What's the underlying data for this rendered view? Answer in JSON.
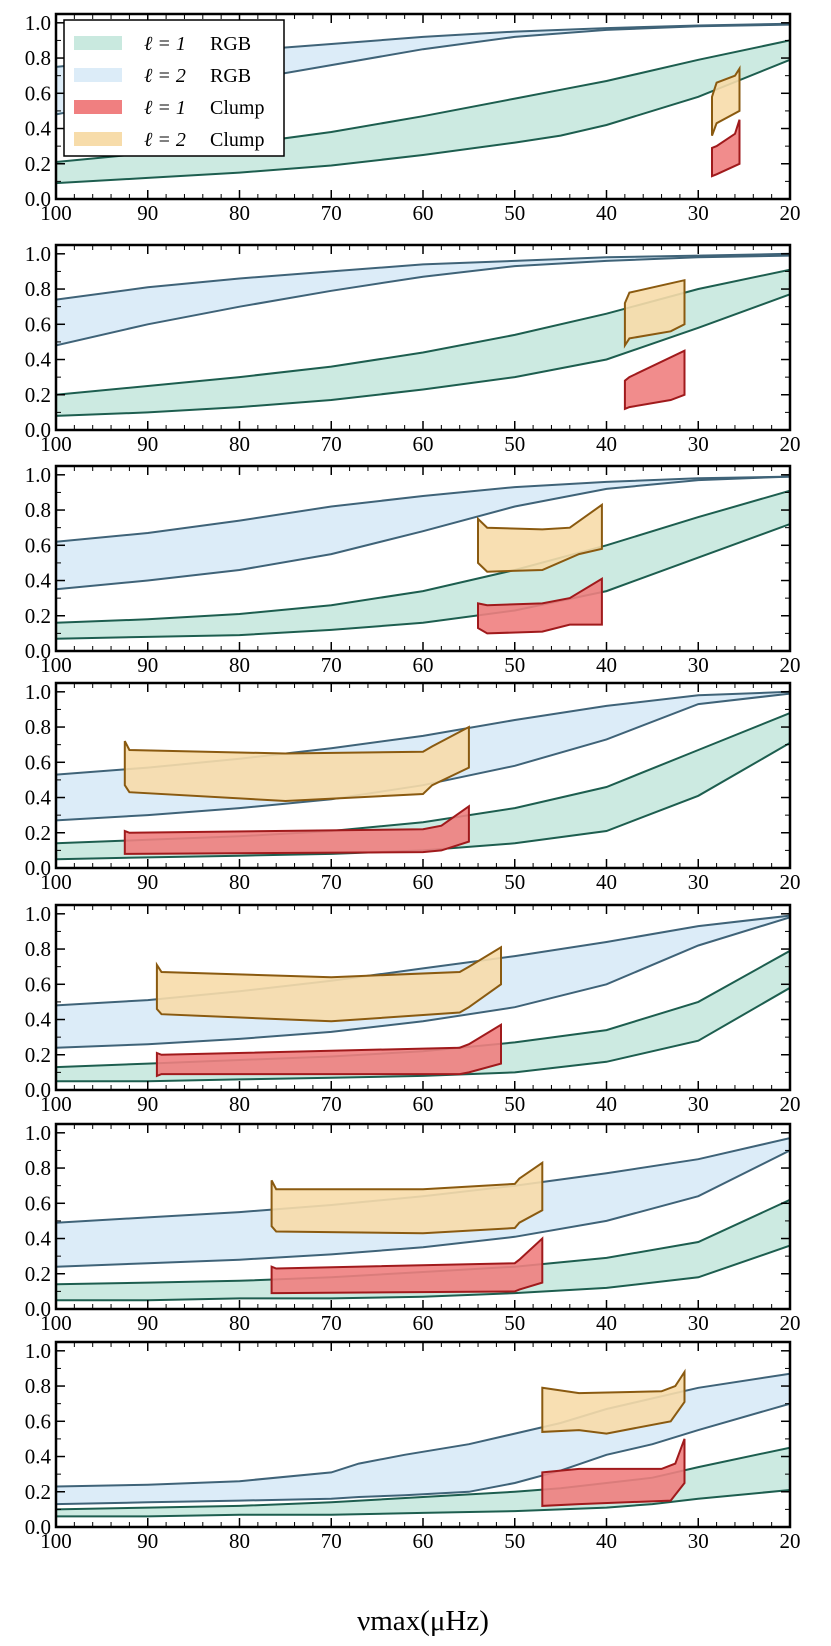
{
  "chart_data": {
    "type": "area",
    "description_free": true,
    "xlabel": "νmax(μHz)",
    "xlim": [
      100,
      20
    ],
    "ylim": [
      0,
      1.05
    ],
    "xticks": [
      "100",
      "90",
      "80",
      "70",
      "60",
      "50",
      "40",
      "30",
      "20"
    ],
    "yticks": [
      "0.0",
      "0.2",
      "0.4",
      "0.6",
      "0.8",
      "1.0"
    ],
    "colors": {
      "l1_rgb_fill": "#c9e9df",
      "l1_rgb_edge": "#1d5e4f",
      "l2_rgb_fill": "#dcecf8",
      "l2_rgb_edge": "#3f6378",
      "l1_clump_fill": "#f07f80",
      "l1_clump_edge": "#a01a1c",
      "l2_clump_fill": "#f7dcaa",
      "l2_clump_edge": "#8a5a10"
    },
    "legend": [
      {
        "symbol": "ℓ = 1",
        "label": "RGB",
        "key": "l1_rgb"
      },
      {
        "symbol": "ℓ = 2",
        "label": "RGB",
        "key": "l2_rgb"
      },
      {
        "symbol": "ℓ = 1",
        "label": "Clump",
        "key": "l1_clump"
      },
      {
        "symbol": "ℓ = 2",
        "label": "Clump",
        "key": "l2_clump"
      }
    ],
    "panels": [
      {
        "l2_rgb": {
          "x": [
            100,
            90,
            80,
            70,
            60,
            50,
            45,
            40,
            30,
            20
          ],
          "upper": [
            0.75,
            0.8,
            0.84,
            0.88,
            0.92,
            0.95,
            0.96,
            0.97,
            0.985,
            0.995
          ],
          "lower": [
            0.48,
            0.58,
            0.67,
            0.76,
            0.85,
            0.92,
            0.94,
            0.96,
            0.98,
            0.99
          ]
        },
        "l1_rgb": {
          "x": [
            100,
            90,
            80,
            70,
            60,
            50,
            45,
            40,
            30,
            20
          ],
          "upper": [
            0.21,
            0.26,
            0.31,
            0.38,
            0.47,
            0.57,
            0.62,
            0.67,
            0.79,
            0.9
          ],
          "lower": [
            0.09,
            0.12,
            0.15,
            0.19,
            0.25,
            0.32,
            0.36,
            0.42,
            0.58,
            0.79
          ]
        },
        "l2_clump": {
          "x": [
            28.5,
            28,
            26,
            25.5,
            25.5,
            28,
            28.5
          ],
          "y": [
            0.58,
            0.66,
            0.7,
            0.74,
            0.5,
            0.43,
            0.36
          ]
        },
        "l1_clump": {
          "x": [
            28.5,
            28,
            26,
            25.5,
            25.5,
            28,
            28.5
          ],
          "y": [
            0.29,
            0.3,
            0.37,
            0.45,
            0.2,
            0.14,
            0.13
          ]
        }
      },
      {
        "l2_rgb": {
          "x": [
            100,
            90,
            80,
            70,
            60,
            50,
            40,
            30,
            20
          ],
          "upper": [
            0.74,
            0.81,
            0.86,
            0.9,
            0.94,
            0.96,
            0.98,
            0.99,
            1.0
          ],
          "lower": [
            0.48,
            0.6,
            0.7,
            0.79,
            0.87,
            0.93,
            0.96,
            0.98,
            0.99
          ]
        },
        "l1_rgb": {
          "x": [
            100,
            90,
            80,
            70,
            60,
            50,
            40,
            30,
            20
          ],
          "upper": [
            0.2,
            0.25,
            0.3,
            0.36,
            0.44,
            0.54,
            0.66,
            0.8,
            0.91
          ],
          "lower": [
            0.08,
            0.1,
            0.13,
            0.17,
            0.23,
            0.3,
            0.4,
            0.58,
            0.77
          ]
        },
        "l2_clump": {
          "x": [
            38,
            37.5,
            31.5,
            31.5,
            33,
            37.5,
            38
          ],
          "y": [
            0.72,
            0.78,
            0.85,
            0.6,
            0.56,
            0.52,
            0.48
          ]
        },
        "l1_clump": {
          "x": [
            38,
            37.5,
            31.5,
            31.5,
            33,
            37.5,
            38
          ],
          "y": [
            0.28,
            0.3,
            0.45,
            0.2,
            0.17,
            0.13,
            0.12
          ]
        }
      },
      {
        "l2_rgb": {
          "x": [
            100,
            90,
            80,
            70,
            60,
            50,
            40,
            30,
            20
          ],
          "upper": [
            0.62,
            0.67,
            0.74,
            0.82,
            0.88,
            0.93,
            0.96,
            0.98,
            0.99
          ],
          "lower": [
            0.35,
            0.4,
            0.46,
            0.55,
            0.68,
            0.82,
            0.92,
            0.97,
            0.99
          ]
        },
        "l1_rgb": {
          "x": [
            100,
            90,
            80,
            70,
            60,
            50,
            40,
            30,
            20
          ],
          "upper": [
            0.16,
            0.18,
            0.21,
            0.26,
            0.34,
            0.46,
            0.6,
            0.76,
            0.91
          ],
          "lower": [
            0.07,
            0.08,
            0.09,
            0.12,
            0.16,
            0.23,
            0.34,
            0.53,
            0.72
          ]
        },
        "l2_clump": {
          "x": [
            54,
            53,
            47,
            44,
            40.5,
            40.5,
            43,
            47,
            53,
            54
          ],
          "y": [
            0.75,
            0.7,
            0.69,
            0.7,
            0.83,
            0.58,
            0.55,
            0.46,
            0.45,
            0.5
          ]
        },
        "l1_clump": {
          "x": [
            54,
            53,
            47,
            44,
            40.5,
            40.5,
            44,
            47,
            53,
            54
          ],
          "y": [
            0.27,
            0.26,
            0.27,
            0.3,
            0.41,
            0.15,
            0.15,
            0.11,
            0.1,
            0.13
          ]
        }
      },
      {
        "l2_rgb": {
          "x": [
            100,
            90,
            80,
            70,
            60,
            50,
            40,
            30,
            20
          ],
          "upper": [
            0.53,
            0.57,
            0.62,
            0.68,
            0.75,
            0.84,
            0.92,
            0.98,
            1.0
          ],
          "lower": [
            0.27,
            0.3,
            0.34,
            0.39,
            0.47,
            0.58,
            0.73,
            0.93,
            0.99
          ]
        },
        "l1_rgb": {
          "x": [
            100,
            90,
            80,
            70,
            60,
            50,
            40,
            30,
            20
          ],
          "upper": [
            0.14,
            0.16,
            0.18,
            0.21,
            0.26,
            0.34,
            0.46,
            0.67,
            0.88
          ],
          "lower": [
            0.05,
            0.06,
            0.07,
            0.08,
            0.1,
            0.14,
            0.21,
            0.41,
            0.71
          ]
        },
        "l2_clump": {
          "x": [
            92.5,
            92,
            75,
            60,
            59,
            55,
            55,
            59,
            60,
            75,
            92,
            92.5
          ],
          "y": [
            0.72,
            0.67,
            0.65,
            0.66,
            0.69,
            0.8,
            0.57,
            0.47,
            0.42,
            0.38,
            0.43,
            0.47
          ]
        },
        "l1_clump": {
          "x": [
            92.5,
            92,
            60,
            58,
            55,
            55,
            58,
            60,
            92,
            92.5
          ],
          "y": [
            0.21,
            0.2,
            0.22,
            0.24,
            0.35,
            0.15,
            0.1,
            0.09,
            0.08,
            0.08
          ]
        }
      },
      {
        "l2_rgb": {
          "x": [
            100,
            90,
            80,
            70,
            60,
            50,
            40,
            30,
            20
          ],
          "upper": [
            0.48,
            0.51,
            0.56,
            0.62,
            0.69,
            0.76,
            0.84,
            0.93,
            0.99
          ],
          "lower": [
            0.24,
            0.26,
            0.29,
            0.33,
            0.39,
            0.47,
            0.6,
            0.82,
            0.98
          ]
        },
        "l1_rgb": {
          "x": [
            100,
            90,
            80,
            70,
            60,
            50,
            40,
            30,
            20
          ],
          "upper": [
            0.13,
            0.15,
            0.17,
            0.19,
            0.22,
            0.27,
            0.34,
            0.5,
            0.79
          ],
          "lower": [
            0.05,
            0.05,
            0.06,
            0.07,
            0.08,
            0.1,
            0.16,
            0.28,
            0.58
          ]
        },
        "l2_clump": {
          "x": [
            89,
            88.5,
            70,
            56,
            55,
            51.5,
            51.5,
            55,
            56,
            70,
            88.5,
            89
          ],
          "y": [
            0.71,
            0.67,
            0.64,
            0.67,
            0.7,
            0.81,
            0.6,
            0.47,
            0.44,
            0.39,
            0.43,
            0.46
          ]
        },
        "l1_clump": {
          "x": [
            89,
            88.5,
            56,
            55,
            51.5,
            51.5,
            55,
            56,
            88.5,
            89
          ],
          "y": [
            0.21,
            0.2,
            0.24,
            0.26,
            0.37,
            0.15,
            0.1,
            0.09,
            0.09,
            0.08
          ]
        }
      },
      {
        "l2_rgb": {
          "x": [
            100,
            90,
            80,
            70,
            60,
            50,
            40,
            30,
            20
          ],
          "upper": [
            0.49,
            0.52,
            0.55,
            0.59,
            0.64,
            0.7,
            0.77,
            0.85,
            0.97
          ],
          "lower": [
            0.24,
            0.26,
            0.28,
            0.31,
            0.35,
            0.41,
            0.5,
            0.64,
            0.9
          ]
        },
        "l1_rgb": {
          "x": [
            100,
            90,
            80,
            70,
            60,
            50,
            40,
            30,
            20
          ],
          "upper": [
            0.14,
            0.15,
            0.16,
            0.18,
            0.21,
            0.24,
            0.29,
            0.38,
            0.62
          ],
          "lower": [
            0.05,
            0.05,
            0.06,
            0.06,
            0.07,
            0.09,
            0.12,
            0.18,
            0.36
          ]
        },
        "l2_clump": {
          "x": [
            76.5,
            76,
            60,
            50,
            49.5,
            47,
            47,
            49.5,
            50,
            60,
            76,
            76.5
          ],
          "y": [
            0.73,
            0.68,
            0.68,
            0.71,
            0.74,
            0.83,
            0.56,
            0.49,
            0.46,
            0.43,
            0.44,
            0.47
          ]
        },
        "l1_clump": {
          "x": [
            76.5,
            76,
            50,
            49.5,
            47,
            47,
            49.5,
            50,
            76,
            76.5
          ],
          "y": [
            0.24,
            0.23,
            0.26,
            0.28,
            0.4,
            0.15,
            0.11,
            0.1,
            0.09,
            0.09
          ]
        }
      },
      {
        "l2_rgb": {
          "x": [
            100,
            90,
            80,
            70,
            67,
            62,
            55,
            50,
            45,
            40,
            35,
            30,
            20
          ],
          "upper": [
            0.23,
            0.24,
            0.26,
            0.31,
            0.36,
            0.41,
            0.47,
            0.53,
            0.59,
            0.67,
            0.73,
            0.79,
            0.87
          ],
          "lower": [
            0.13,
            0.14,
            0.15,
            0.16,
            0.17,
            0.18,
            0.2,
            0.25,
            0.32,
            0.41,
            0.47,
            0.55,
            0.7
          ]
        },
        "l1_rgb": {
          "x": [
            100,
            90,
            80,
            70,
            60,
            50,
            45,
            40,
            35,
            30,
            20
          ],
          "upper": [
            0.1,
            0.11,
            0.12,
            0.14,
            0.17,
            0.2,
            0.22,
            0.25,
            0.28,
            0.34,
            0.45
          ],
          "lower": [
            0.06,
            0.06,
            0.07,
            0.07,
            0.08,
            0.09,
            0.1,
            0.11,
            0.13,
            0.16,
            0.21
          ]
        },
        "l2_clump": {
          "x": [
            47,
            43,
            34,
            32.5,
            31.5,
            31.5,
            33,
            40,
            43,
            47
          ],
          "y": [
            0.79,
            0.76,
            0.77,
            0.8,
            0.88,
            0.71,
            0.6,
            0.53,
            0.55,
            0.54
          ]
        },
        "l1_clump": {
          "x": [
            47,
            43,
            34,
            32.5,
            31.5,
            31.5,
            33,
            43,
            47
          ],
          "y": [
            0.31,
            0.33,
            0.33,
            0.36,
            0.5,
            0.25,
            0.15,
            0.13,
            0.12
          ]
        }
      }
    ]
  }
}
